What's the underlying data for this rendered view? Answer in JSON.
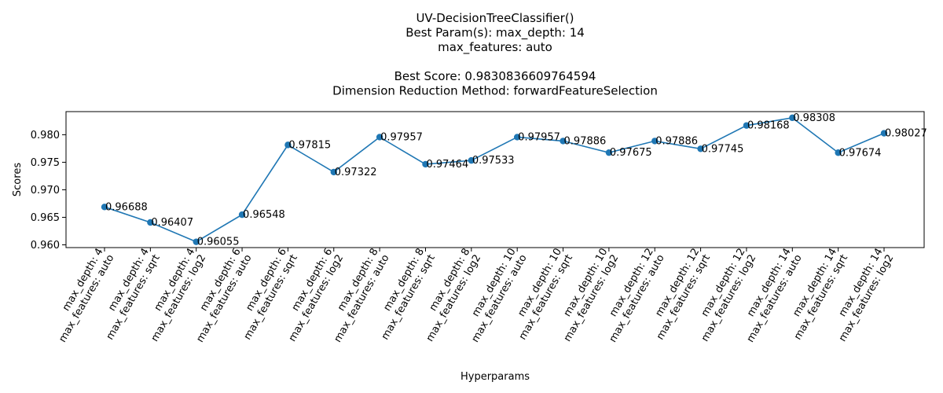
{
  "chart_data": {
    "type": "line",
    "title_lines": [
      "UV-DecisionTreeClassifier()",
      "Best Param(s): max_depth: 14",
      "max_features: auto",
      "",
      "Best Score: 0.9830836609764594",
      "Dimension Reduction Method: forwardFeatureSelection"
    ],
    "xlabel": "Hyperparams",
    "ylabel": "Scores",
    "ylim": [
      0.9595,
      0.9842
    ],
    "yticks": [
      "0.960",
      "0.965",
      "0.970",
      "0.975",
      "0.980"
    ],
    "ytick_values": [
      0.96,
      0.965,
      0.97,
      0.975,
      0.98
    ],
    "categories": [
      [
        "max_depth: 4",
        "max_features: auto"
      ],
      [
        "max_depth: 4",
        "max_features: sqrt"
      ],
      [
        "max_depth: 4",
        "max_features: log2"
      ],
      [
        "max_depth: 6",
        "max_features: auto"
      ],
      [
        "max_depth: 6",
        "max_features: sqrt"
      ],
      [
        "max_depth: 6",
        "max_features: log2"
      ],
      [
        "max_depth: 8",
        "max_features: auto"
      ],
      [
        "max_depth: 8",
        "max_features: sqrt"
      ],
      [
        "max_depth: 8",
        "max_features: log2"
      ],
      [
        "max_depth: 10",
        "max_features: auto"
      ],
      [
        "max_depth: 10",
        "max_features: sqrt"
      ],
      [
        "max_depth: 10",
        "max_features: log2"
      ],
      [
        "max_depth: 12",
        "max_features: auto"
      ],
      [
        "max_depth: 12",
        "max_features: sqrt"
      ],
      [
        "max_depth: 12",
        "max_features: log2"
      ],
      [
        "max_depth: 14",
        "max_features: auto"
      ],
      [
        "max_depth: 14",
        "max_features: sqrt"
      ],
      [
        "max_depth: 14",
        "max_features: log2"
      ]
    ],
    "values": [
      0.96688,
      0.96407,
      0.96055,
      0.96548,
      0.97815,
      0.97322,
      0.97957,
      0.97464,
      0.97533,
      0.97957,
      0.97886,
      0.97675,
      0.97886,
      0.97745,
      0.98168,
      0.98308,
      0.97674,
      0.98027
    ],
    "data_labels": [
      "0.96688",
      "0.96407",
      "0.96055",
      "0.96548",
      "0.97815",
      "0.97322",
      "0.97957",
      "0.97464",
      "0.97533",
      "0.97957",
      "0.97886",
      "0.97675",
      "0.97886",
      "0.97745",
      "0.98168",
      "0.98308",
      "0.97674",
      "0.98027"
    ],
    "line_color": "#1f77b4",
    "marker": "circle",
    "grid": false,
    "legend": "none"
  }
}
